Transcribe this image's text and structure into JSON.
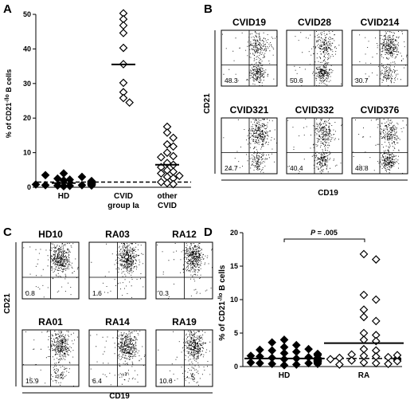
{
  "panels": {
    "A": {
      "letter": "A",
      "chart_data": {
        "type": "scatter",
        "ylabel": "% of CD21-/lo B cells",
        "ylabel_main": "% of CD21",
        "ylabel_sup": "-/lo",
        "ylabel_tail": " B cells",
        "ylim": [
          0,
          50
        ],
        "yticks": [
          "0",
          "10",
          "20",
          "30",
          "40",
          "50"
        ],
        "categories": [
          {
            "label": "HD",
            "label2": ""
          },
          {
            "label": "CVID",
            "label2": "group Ia"
          },
          {
            "label": "other",
            "label2": "CVID"
          }
        ],
        "series": [
          {
            "category": "HD",
            "filled": true,
            "median": 1.2,
            "values": [
              0.3,
              0.4,
              0.5,
              0.6,
              0.6,
              0.7,
              0.8,
              0.8,
              0.9,
              1.0,
              1.0,
              1.1,
              1.2,
              1.3,
              1.4,
              1.5,
              1.6,
              1.8,
              2.0,
              2.2,
              2.5,
              3.0,
              3.5,
              4.0,
              0.5,
              0.9,
              1.2,
              1.7
            ]
          },
          {
            "category": "CVID group Ia",
            "filled": false,
            "median": 35.5,
            "values": [
              50.3,
              48.6,
              46.8,
              44.6,
              40.3,
              35.6,
              30.2,
              27.5,
              25.8,
              24.5
            ]
          },
          {
            "category": "other CVID",
            "filled": false,
            "median": 6.5,
            "values": [
              17.5,
              15.8,
              14.3,
              12.4,
              11.8,
              10.0,
              9.0,
              8.7,
              7.0,
              6.5,
              5.8,
              4.9,
              4.5,
              4.0,
              3.3,
              3.0,
              2.6,
              1.5,
              1.2,
              0.9
            ]
          }
        ],
        "reference_line": 1.5
      }
    },
    "B": {
      "letter": "B",
      "ylabel": "CD21",
      "xlabel": "CD19",
      "plots": [
        {
          "title": "CVID19",
          "pct": "48.3"
        },
        {
          "title": "CVID28",
          "pct": "50.6"
        },
        {
          "title": "CVID214",
          "pct": "30.7"
        },
        {
          "title": "CVID321",
          "pct": "24.7"
        },
        {
          "title": "CVID332",
          "pct": "40.4"
        },
        {
          "title": "CVID376",
          "pct": "48.8"
        }
      ]
    },
    "C": {
      "letter": "C",
      "ylabel": "CD21",
      "xlabel": "CD19",
      "plots": [
        {
          "title": "HD10",
          "pct": "0.8"
        },
        {
          "title": "RA03",
          "pct": "1.6"
        },
        {
          "title": "RA12",
          "pct": "0.3"
        },
        {
          "title": "RA01",
          "pct": "15.9"
        },
        {
          "title": "RA14",
          "pct": "6.4"
        },
        {
          "title": "RA19",
          "pct": "10.6"
        }
      ]
    },
    "D": {
      "letter": "D",
      "p_label": "P",
      "p_value": " = .005",
      "chart_data": {
        "type": "scatter",
        "ylabel_main": "% of CD21",
        "ylabel_sup": "-/lo",
        "ylabel_tail": " B cells",
        "ylim": [
          0,
          20
        ],
        "yticks": [
          "0",
          "5",
          "10",
          "15",
          "20"
        ],
        "categories": [
          {
            "label": "HD"
          },
          {
            "label": "RA"
          }
        ],
        "series": [
          {
            "category": "HD",
            "filled": true,
            "median": 1.2,
            "values": [
              0.2,
              0.3,
              0.4,
              0.5,
              0.5,
              0.6,
              0.6,
              0.7,
              0.7,
              0.8,
              0.8,
              0.9,
              0.9,
              1.0,
              1.0,
              1.1,
              1.1,
              1.2,
              1.2,
              1.3,
              1.4,
              1.5,
              1.6,
              1.7,
              1.8,
              2.0,
              2.2,
              2.4,
              2.6,
              2.9,
              3.2,
              3.6,
              4.0,
              0.4,
              0.9,
              1.3,
              1.9,
              2.5
            ]
          },
          {
            "category": "RA",
            "filled": false,
            "median": 3.5,
            "values": [
              16.8,
              16.0,
              10.7,
              10.0,
              8.5,
              7.4,
              6.8,
              5.0,
              4.7,
              4.0,
              3.8,
              2.6,
              2.4,
              1.8,
              1.6,
              1.5,
              1.4,
              1.3,
              1.2,
              1.1,
              1.0,
              0.9,
              0.8,
              0.6,
              0.5,
              0.4,
              0.3,
              1.7
            ]
          }
        ],
        "reference_line": 1.2
      }
    }
  }
}
